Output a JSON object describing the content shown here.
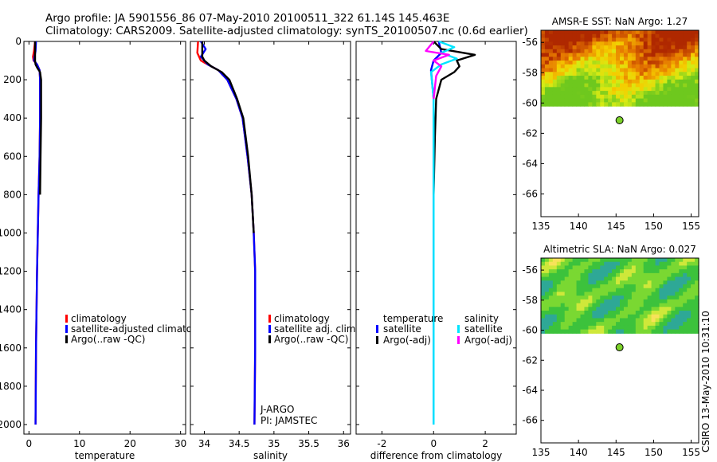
{
  "title_line1": "Argo profile: JA 5901556_86 07-May-2010 20100511_322 61.14S 145.463E",
  "title_line2": "Climatology: CARS2009. Satellite-adjusted climatology: synTS_20100507.nc (0.6d earlier)",
  "credit": "CSIRO 13-May-2010 10:31:10",
  "colors": {
    "climatology": "#ff0000",
    "satellite": "#0000ff",
    "argo": "#000000",
    "salinity_satellite": "#00e5ff",
    "salinity_argo": "#ff00ff"
  },
  "chart_data": [
    {
      "type": "line",
      "xlabel": "temperature",
      "ylabel": "",
      "xlim": [
        -1,
        31
      ],
      "ylim": [
        2050,
        0
      ],
      "xticks": [
        "0",
        "10",
        "20",
        "30"
      ],
      "yticks": [
        "0",
        "200",
        "400",
        "600",
        "800",
        "1000",
        "1200",
        "1400",
        "1600",
        "1800",
        "2000"
      ],
      "legend": [
        "climatology",
        "satellite-adjusted climatology",
        "Argo(..raw -QC)"
      ],
      "legend_placement": "lower-right",
      "series": [
        {
          "name": "climatology",
          "color": "#ff0000",
          "x": [
            1.2,
            1.0,
            0.8,
            0.9,
            1.6,
            2.1,
            2.2,
            2.2,
            2.1,
            1.9,
            1.6,
            1.4,
            1.3
          ],
          "y": [
            0,
            50,
            80,
            100,
            120,
            150,
            200,
            400,
            600,
            800,
            1200,
            1600,
            2000
          ]
        },
        {
          "name": "satellite-adjusted climatology",
          "color": "#0000ff",
          "x": [
            1.4,
            1.3,
            1.1,
            1.0,
            1.6,
            2.1,
            2.2,
            2.2,
            2.1,
            1.9,
            1.6,
            1.4,
            1.3
          ],
          "y": [
            0,
            50,
            80,
            100,
            120,
            150,
            200,
            400,
            600,
            800,
            1200,
            1600,
            2000
          ]
        },
        {
          "name": "Argo(..raw -QC)",
          "color": "#000000",
          "x": [
            1.2,
            1.2,
            1.3,
            1.7,
            2.2,
            2.4,
            2.4,
            2.3,
            2.2
          ],
          "y": [
            0,
            100,
            120,
            140,
            160,
            200,
            400,
            600,
            800
          ]
        }
      ]
    },
    {
      "type": "line",
      "xlabel": "salinity",
      "ylabel": "",
      "xlim": [
        33.8,
        36.1
      ],
      "ylim": [
        2050,
        0
      ],
      "xticks": [
        "34",
        "34.5",
        "35",
        "35.5",
        "36"
      ],
      "legend": [
        "climatology",
        "satellite adj. clim.",
        "Argo(..raw -QC)"
      ],
      "legend_placement": "lower-right",
      "annotations": [
        "J-ARGO",
        "PI: JAMSTEC"
      ],
      "series": [
        {
          "name": "climatology",
          "color": "#ff0000",
          "x": [
            33.91,
            33.9,
            33.95,
            34.05,
            34.2,
            34.33,
            34.46,
            34.55,
            34.62,
            34.68,
            34.71,
            34.73,
            34.73,
            34.72
          ],
          "y": [
            0,
            60,
            100,
            120,
            150,
            200,
            300,
            400,
            600,
            800,
            1000,
            1200,
            1600,
            2000
          ]
        },
        {
          "name": "satellite adj. clim.",
          "color": "#0000ff",
          "x": [
            33.95,
            34.02,
            33.95,
            34.05,
            34.2,
            34.33,
            34.46,
            34.55,
            34.62,
            34.68,
            34.71,
            34.73,
            34.73,
            34.72
          ],
          "y": [
            0,
            40,
            80,
            120,
            150,
            200,
            300,
            400,
            600,
            800,
            1000,
            1200,
            1600,
            2000
          ]
        },
        {
          "name": "Argo(..raw -QC)",
          "color": "#000000",
          "x": [
            33.97,
            33.97,
            34.0,
            34.1,
            34.25,
            34.36,
            34.47,
            34.56,
            34.63,
            34.68,
            34.71
          ],
          "y": [
            0,
            80,
            100,
            130,
            160,
            200,
            300,
            400,
            600,
            800,
            1000
          ]
        }
      ]
    },
    {
      "type": "line",
      "xlabel": "difference from climatology",
      "ylabel": "",
      "xlim": [
        -3,
        3.2
      ],
      "ylim": [
        2050,
        0
      ],
      "xticks": [
        "-2",
        "0",
        "2"
      ],
      "legend": [
        "temperature",
        "satellite",
        "Argo(-adj)",
        "salinity",
        "satellite",
        "Argo(-adj)"
      ],
      "legend_placement": "lower-center",
      "series": [
        {
          "name": "temperature satellite",
          "color": "#0000ff",
          "x": [
            0.2,
            0.3,
            0.0,
            -0.1,
            0.0,
            0.0,
            0.0
          ],
          "y": [
            0,
            60,
            100,
            150,
            300,
            1000,
            2000
          ]
        },
        {
          "name": "temperature Argo(-adj)",
          "color": "#000000",
          "x": [
            0.0,
            0.3,
            1.6,
            0.9,
            1.0,
            0.8,
            0.3,
            0.1,
            0.05,
            0.0
          ],
          "y": [
            0,
            40,
            70,
            100,
            130,
            160,
            200,
            300,
            500,
            800
          ]
        },
        {
          "name": "salinity satellite",
          "color": "#00e5ff",
          "x": [
            0.2,
            0.8,
            0.3,
            0.9,
            0.3,
            -0.1,
            0.0,
            0.0
          ],
          "y": [
            0,
            30,
            60,
            90,
            120,
            160,
            300,
            2000
          ]
        },
        {
          "name": "salinity Argo(-adj)",
          "color": "#ff00ff",
          "x": [
            0.0,
            -0.3,
            0.6,
            0.0,
            0.3,
            0.1,
            0.0
          ],
          "y": [
            0,
            50,
            70,
            100,
            130,
            180,
            300
          ]
        }
      ]
    },
    {
      "type": "heatmap",
      "title": "AMSR-E SST: NaN Argo: 1.27",
      "xlim": [
        135,
        156
      ],
      "ylim": [
        -67.5,
        -55.2
      ],
      "xticks": [
        "135",
        "140",
        "145",
        "150",
        "155"
      ],
      "yticks": [
        "-56",
        "-58",
        "-60",
        "-62",
        "-64",
        "-66"
      ],
      "data_lat_range": [
        -60.2,
        -55.2
      ],
      "colormap": "red-orange-yellow-green",
      "float_position": {
        "lon": 145.463,
        "lat": -61.14
      }
    },
    {
      "type": "heatmap",
      "title": "Altimetric SLA: NaN Argo: 0.027",
      "xlim": [
        135,
        156
      ],
      "ylim": [
        -67.5,
        -55.2
      ],
      "xticks": [
        "135",
        "140",
        "145",
        "150",
        "155"
      ],
      "yticks": [
        "-56",
        "-58",
        "-60",
        "-62",
        "-64",
        "-66"
      ],
      "data_lat_range": [
        -60.2,
        -55.2
      ],
      "colormap": "green-yellow-cyan",
      "float_position": {
        "lon": 145.463,
        "lat": -61.14
      }
    }
  ]
}
